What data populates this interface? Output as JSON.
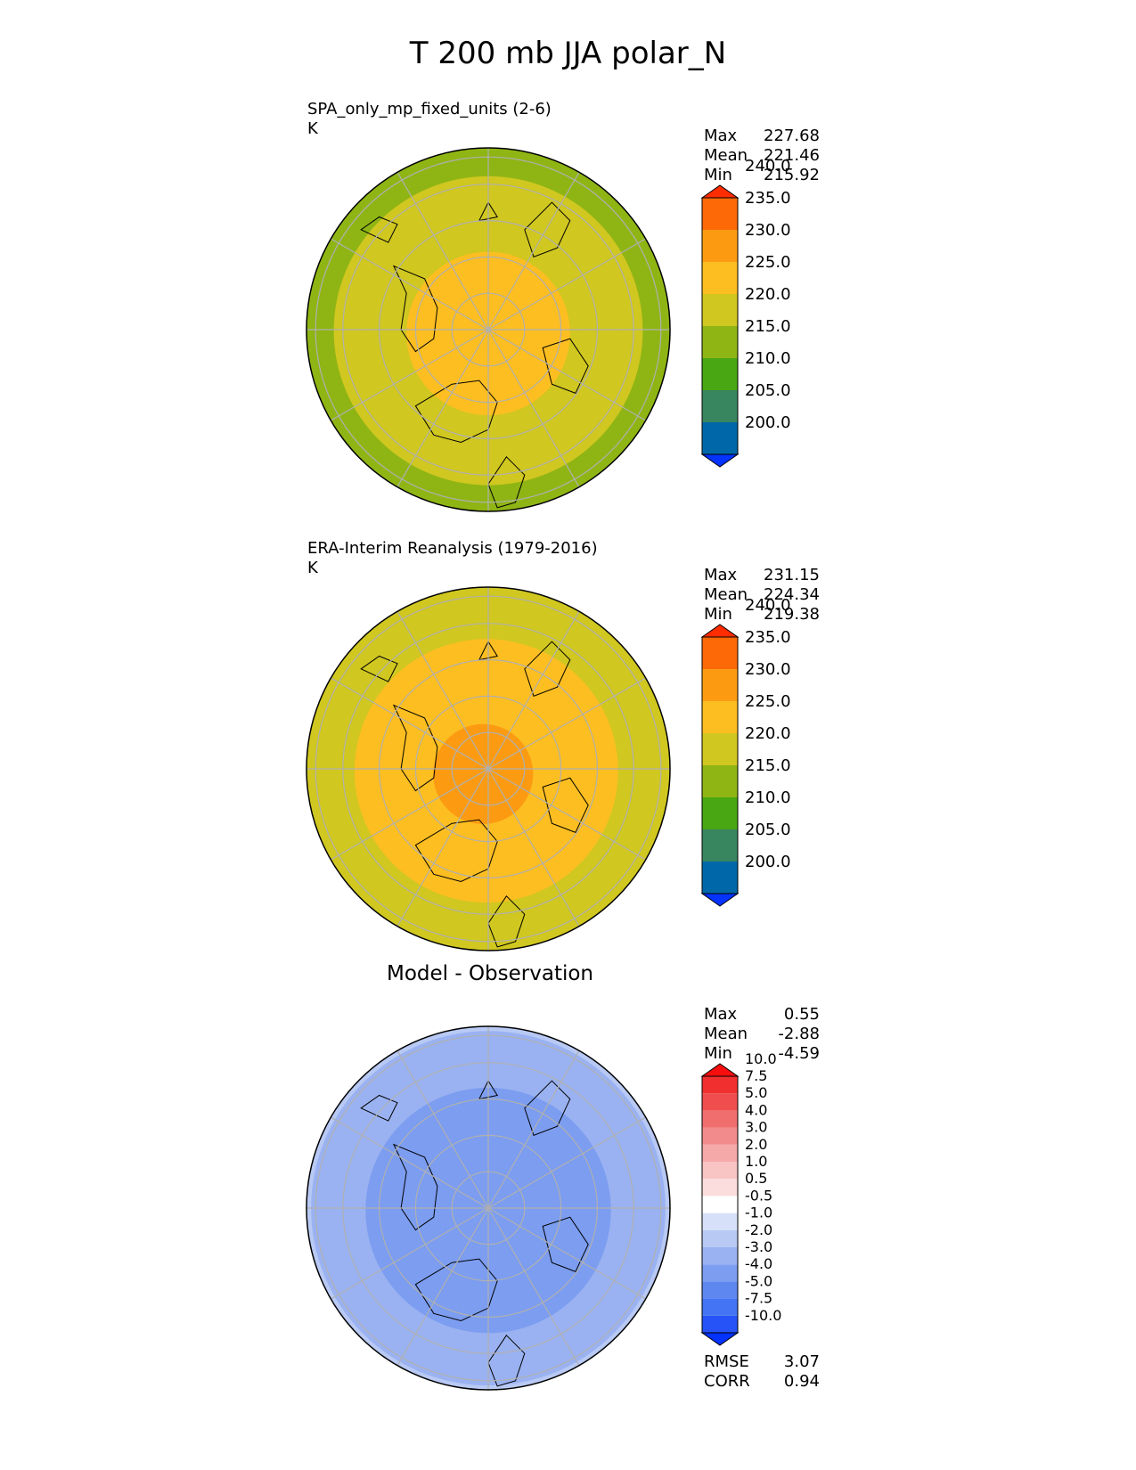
{
  "main_title": "T 200 mb JJA polar_N",
  "colors": {
    "abs_levels": [
      "#0433ff",
      "#0068a8",
      "#388660",
      "#48a713",
      "#8fb514",
      "#d0c720",
      "#fdbe21",
      "#fc9b12",
      "#fd6907",
      "#ff2c00"
    ],
    "diff_levels": [
      "#0432ff",
      "#2553f8",
      "#4473f3",
      "#5f87f0",
      "#7c9df0",
      "#9ab2f1",
      "#b8c9f4",
      "#d6e1f9",
      "#ffffff",
      "#fbdddd",
      "#f8c4c4",
      "#f5a9a9",
      "#f28c8c",
      "#f06e6e",
      "#f04e4e",
      "#f12f2f",
      "#f80e0e"
    ],
    "coastline": "#000000",
    "grid": "#b0b0b0"
  },
  "chart_data": [
    {
      "type": "contour-map",
      "projection": "north-polar-stereographic",
      "title": "SPA_only_mp_fixed_units (2-6)",
      "units": "K",
      "stats": {
        "max_label": "Max",
        "max": "227.68",
        "mean_label": "Mean",
        "mean": "221.46",
        "min_label": "Min",
        "min": "215.92"
      },
      "levels": [
        "200.0",
        "205.0",
        "210.0",
        "215.0",
        "220.0",
        "225.0",
        "230.0",
        "235.0",
        "240.0"
      ],
      "field": {
        "center": 227.0,
        "rings": [
          [
            0.25,
            227
          ],
          [
            0.55,
            224
          ],
          [
            0.85,
            220
          ],
          [
            1.0,
            217
          ]
        ]
      }
    },
    {
      "type": "contour-map",
      "projection": "north-polar-stereographic",
      "title": "ERA-Interim Reanalysis (1979-2016)",
      "units": "K",
      "stats": {
        "max_label": "Max",
        "max": "231.15",
        "mean_label": "Mean",
        "mean": "224.34",
        "min_label": "Min",
        "min": "219.38"
      },
      "levels": [
        "200.0",
        "205.0",
        "210.0",
        "215.0",
        "220.0",
        "225.0",
        "230.0",
        "235.0",
        "240.0"
      ],
      "field": {
        "center": 231.0,
        "rings": [
          [
            0.2,
            231
          ],
          [
            0.55,
            227
          ],
          [
            1.0,
            222
          ]
        ]
      }
    },
    {
      "type": "contour-map",
      "projection": "north-polar-stereographic",
      "title": "Model - Observation",
      "units": "",
      "stats": {
        "max_label": "Max",
        "max": "0.55",
        "mean_label": "Mean",
        "mean": "-2.88",
        "min_label": "Min",
        "min": "-4.59"
      },
      "levels": [
        "-10.0",
        "-7.5",
        "-5.0",
        "-4.0",
        "-3.0",
        "-2.0",
        "-1.0",
        "-0.5",
        "0.5",
        "1.0",
        "2.0",
        "3.0",
        "4.0",
        "5.0",
        "7.5",
        "10.0"
      ],
      "metrics": {
        "rmse_label": "RMSE",
        "rmse": "3.07",
        "corr_label": "CORR",
        "corr": "0.94"
      },
      "field": {
        "center": -3.5,
        "rings": [
          [
            0.3,
            -3.5
          ],
          [
            0.7,
            -3.0
          ],
          [
            1.0,
            -2.0
          ]
        ]
      }
    }
  ]
}
